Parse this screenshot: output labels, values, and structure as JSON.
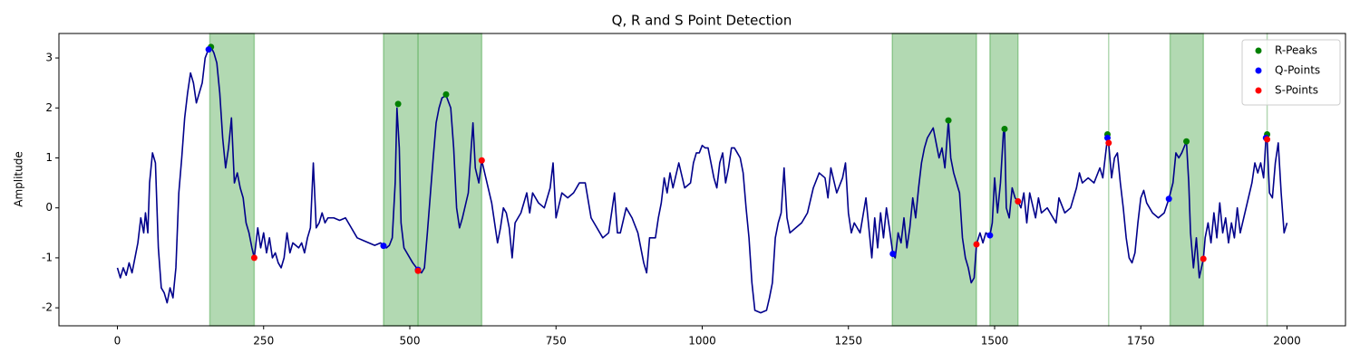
{
  "chart_data": {
    "type": "line",
    "title": "Q, R and S Point Detection",
    "y_label": "Amplitude",
    "xlim": [
      -100,
      2100
    ],
    "ylim": [
      -2.36,
      3.49
    ],
    "xticks": [
      0,
      250,
      500,
      750,
      1000,
      1250,
      1500,
      1750,
      2000
    ],
    "yticks": [
      -2,
      -1,
      0,
      1,
      2,
      3
    ],
    "legend": "upper right",
    "span_color": "green",
    "spans": [
      [
        158,
        234
      ],
      [
        455,
        623
      ],
      [
        514,
        514
      ],
      [
        1325,
        1469
      ],
      [
        1492,
        1540
      ],
      [
        1695,
        1695
      ],
      [
        1800,
        1857
      ],
      [
        1966,
        1966
      ]
    ],
    "series": [
      {
        "color": "#00008b",
        "mode": "line",
        "x": [
          0,
          5,
          10,
          15,
          20,
          25,
          30,
          35,
          40,
          45,
          48,
          52,
          55,
          60,
          65,
          70,
          75,
          80,
          85,
          90,
          95,
          100,
          105,
          110,
          115,
          120,
          125,
          130,
          135,
          140,
          145,
          150,
          155,
          160,
          165,
          170,
          175,
          180,
          185,
          190,
          195,
          200,
          205,
          210,
          215,
          220,
          225,
          230,
          234,
          240,
          245,
          250,
          255,
          260,
          265,
          270,
          275,
          280,
          285,
          290,
          295,
          300,
          305,
          310,
          315,
          320,
          325,
          330,
          335,
          340,
          345,
          350,
          355,
          360,
          370,
          380,
          390,
          400,
          410,
          420,
          430,
          440,
          450,
          455,
          460,
          465,
          470,
          475,
          478,
          482,
          485,
          490,
          500,
          505,
          514,
          520,
          525,
          530,
          540,
          545,
          550,
          555,
          562,
          570,
          575,
          580,
          585,
          590,
          600,
          605,
          608,
          612,
          618,
          623,
          630,
          640,
          645,
          650,
          655,
          660,
          665,
          670,
          675,
          680,
          690,
          700,
          705,
          710,
          720,
          730,
          740,
          745,
          750,
          760,
          770,
          780,
          790,
          800,
          810,
          820,
          830,
          840,
          850,
          855,
          860,
          870,
          880,
          890,
          900,
          905,
          910,
          920,
          925,
          930,
          935,
          940,
          945,
          950,
          960,
          970,
          980,
          985,
          990,
          995,
          1000,
          1005,
          1010,
          1015,
          1020,
          1025,
          1030,
          1035,
          1040,
          1045,
          1050,
          1055,
          1060,
          1065,
          1070,
          1075,
          1080,
          1085,
          1090,
          1100,
          1110,
          1115,
          1120,
          1125,
          1130,
          1135,
          1140,
          1145,
          1150,
          1160,
          1170,
          1180,
          1190,
          1200,
          1210,
          1215,
          1220,
          1230,
          1240,
          1245,
          1250,
          1255,
          1260,
          1270,
          1280,
          1290,
          1295,
          1300,
          1305,
          1310,
          1315,
          1320,
          1326,
          1330,
          1335,
          1340,
          1345,
          1350,
          1355,
          1360,
          1365,
          1370,
          1375,
          1380,
          1385,
          1390,
          1395,
          1400,
          1405,
          1410,
          1415,
          1421,
          1425,
          1430,
          1435,
          1440,
          1445,
          1450,
          1455,
          1460,
          1465,
          1469,
          1475,
          1480,
          1485,
          1492,
          1496,
          1500,
          1505,
          1510,
          1515,
          1517,
          1520,
          1525,
          1530,
          1535,
          1540,
          1545,
          1550,
          1555,
          1560,
          1570,
          1575,
          1580,
          1590,
          1600,
          1605,
          1610,
          1620,
          1630,
          1640,
          1645,
          1650,
          1660,
          1670,
          1680,
          1685,
          1693,
          1695,
          1700,
          1705,
          1710,
          1715,
          1720,
          1725,
          1730,
          1735,
          1740,
          1745,
          1750,
          1755,
          1760,
          1770,
          1780,
          1790,
          1798,
          1805,
          1810,
          1815,
          1820,
          1828,
          1832,
          1835,
          1840,
          1845,
          1850,
          1857,
          1860,
          1865,
          1870,
          1875,
          1880,
          1885,
          1890,
          1895,
          1900,
          1905,
          1910,
          1915,
          1920,
          1930,
          1940,
          1945,
          1950,
          1955,
          1960,
          1964,
          1966,
          1970,
          1975,
          1980,
          1985,
          1990,
          1995,
          2000
        ],
        "values": [
          -1.2,
          -1.4,
          -1.2,
          -1.35,
          -1.1,
          -1.3,
          -1.0,
          -0.7,
          -0.2,
          -0.5,
          -0.1,
          -0.5,
          0.5,
          1.1,
          0.9,
          -0.8,
          -1.6,
          -1.7,
          -1.9,
          -1.6,
          -1.8,
          -1.2,
          0.3,
          1.0,
          1.8,
          2.3,
          2.7,
          2.5,
          2.1,
          2.3,
          2.5,
          3.0,
          3.15,
          3.22,
          3.1,
          2.9,
          2.3,
          1.4,
          0.8,
          1.2,
          1.8,
          0.5,
          0.7,
          0.4,
          0.2,
          -0.3,
          -0.5,
          -0.8,
          -1.0,
          -0.4,
          -0.8,
          -0.5,
          -0.9,
          -0.6,
          -1.0,
          -0.9,
          -1.1,
          -1.2,
          -1.0,
          -0.5,
          -0.9,
          -0.7,
          -0.75,
          -0.8,
          -0.7,
          -0.9,
          -0.6,
          -0.4,
          0.9,
          -0.4,
          -0.3,
          -0.1,
          -0.3,
          -0.2,
          -0.2,
          -0.25,
          -0.2,
          -0.4,
          -0.6,
          -0.65,
          -0.7,
          -0.75,
          -0.7,
          -0.76,
          -0.8,
          -0.75,
          -0.6,
          0.5,
          2.0,
          1.2,
          -0.3,
          -0.8,
          -1.0,
          -1.1,
          -1.24,
          -1.3,
          -1.2,
          -0.5,
          1.0,
          1.7,
          2.0,
          2.2,
          2.25,
          2.0,
          1.2,
          0.0,
          -0.4,
          -0.2,
          0.3,
          1.2,
          1.7,
          0.8,
          0.5,
          0.95,
          0.6,
          0.1,
          -0.3,
          -0.7,
          -0.4,
          0.0,
          -0.1,
          -0.4,
          -1.0,
          -0.3,
          -0.1,
          0.3,
          -0.1,
          0.3,
          0.1,
          0.0,
          0.4,
          0.9,
          -0.2,
          0.3,
          0.2,
          0.3,
          0.5,
          0.5,
          -0.2,
          -0.4,
          -0.6,
          -0.5,
          0.3,
          -0.5,
          -0.5,
          0.0,
          -0.2,
          -0.5,
          -1.1,
          -1.3,
          -0.6,
          -0.6,
          -0.2,
          0.1,
          0.6,
          0.3,
          0.7,
          0.4,
          0.9,
          0.4,
          0.5,
          0.9,
          1.1,
          1.1,
          1.25,
          1.2,
          1.2,
          0.9,
          0.6,
          0.4,
          0.9,
          1.1,
          0.5,
          0.8,
          1.2,
          1.2,
          1.1,
          1.0,
          0.7,
          0.0,
          -0.6,
          -1.5,
          -2.05,
          -2.1,
          -2.05,
          -1.8,
          -1.5,
          -0.6,
          -0.3,
          -0.1,
          0.8,
          -0.2,
          -0.5,
          -0.4,
          -0.3,
          -0.1,
          0.4,
          0.7,
          0.6,
          0.2,
          0.8,
          0.3,
          0.6,
          0.9,
          -0.1,
          -0.5,
          -0.3,
          -0.5,
          0.2,
          -1.0,
          -0.2,
          -0.8,
          -0.1,
          -0.6,
          0.0,
          -0.4,
          -0.92,
          -1.0,
          -0.5,
          -0.7,
          -0.2,
          -0.8,
          -0.4,
          0.2,
          -0.2,
          0.4,
          0.9,
          1.2,
          1.4,
          1.5,
          1.6,
          1.3,
          1.0,
          1.2,
          0.8,
          1.75,
          1.0,
          0.7,
          0.5,
          0.3,
          -0.6,
          -1.0,
          -1.2,
          -1.5,
          -1.4,
          -0.73,
          -0.5,
          -0.7,
          -0.5,
          -0.55,
          -0.3,
          0.6,
          -0.1,
          0.5,
          1.5,
          1.58,
          0.0,
          -0.2,
          0.4,
          0.2,
          0.13,
          0.0,
          0.3,
          -0.3,
          0.3,
          -0.2,
          0.2,
          -0.1,
          0.0,
          -0.2,
          -0.3,
          0.2,
          -0.1,
          0.0,
          0.4,
          0.7,
          0.5,
          0.6,
          0.5,
          0.8,
          0.6,
          1.4,
          1.3,
          0.6,
          1.0,
          1.1,
          0.5,
          0.0,
          -0.6,
          -1.0,
          -1.1,
          -0.9,
          -0.3,
          0.2,
          0.35,
          0.1,
          -0.1,
          -0.2,
          -0.1,
          0.18,
          0.5,
          1.1,
          1.0,
          1.1,
          1.33,
          0.5,
          -0.5,
          -1.2,
          -0.6,
          -1.4,
          -1.02,
          -0.6,
          -0.3,
          -0.7,
          -0.1,
          -0.6,
          0.1,
          -0.5,
          -0.2,
          -0.7,
          -0.3,
          -0.6,
          0.0,
          -0.5,
          0.0,
          0.5,
          0.9,
          0.7,
          0.9,
          0.6,
          1.4,
          1.37,
          0.3,
          0.2,
          0.9,
          1.3,
          0.3,
          -0.5,
          -0.3
        ]
      },
      {
        "name": "R-Peaks",
        "color": "green",
        "mode": "markers",
        "x": [
          160,
          480,
          562,
          1421,
          1517,
          1693,
          1828,
          1966
        ],
        "values": [
          3.22,
          2.08,
          2.27,
          1.75,
          1.58,
          1.47,
          1.33,
          1.47
        ]
      },
      {
        "name": "Q-Points",
        "color": "blue",
        "mode": "markers",
        "x": [
          156,
          455,
          514,
          1326,
          1492,
          1693,
          1798,
          1964
        ],
        "values": [
          3.17,
          -0.76,
          -1.24,
          -0.92,
          -0.55,
          1.4,
          0.18,
          1.4
        ]
      },
      {
        "name": "S-Points",
        "color": "red",
        "mode": "markers",
        "x": [
          234,
          514,
          623,
          1469,
          1540,
          1695,
          1857,
          1966
        ],
        "values": [
          -1.0,
          -1.26,
          0.95,
          -0.73,
          0.13,
          1.3,
          -1.02,
          1.37
        ]
      }
    ]
  }
}
